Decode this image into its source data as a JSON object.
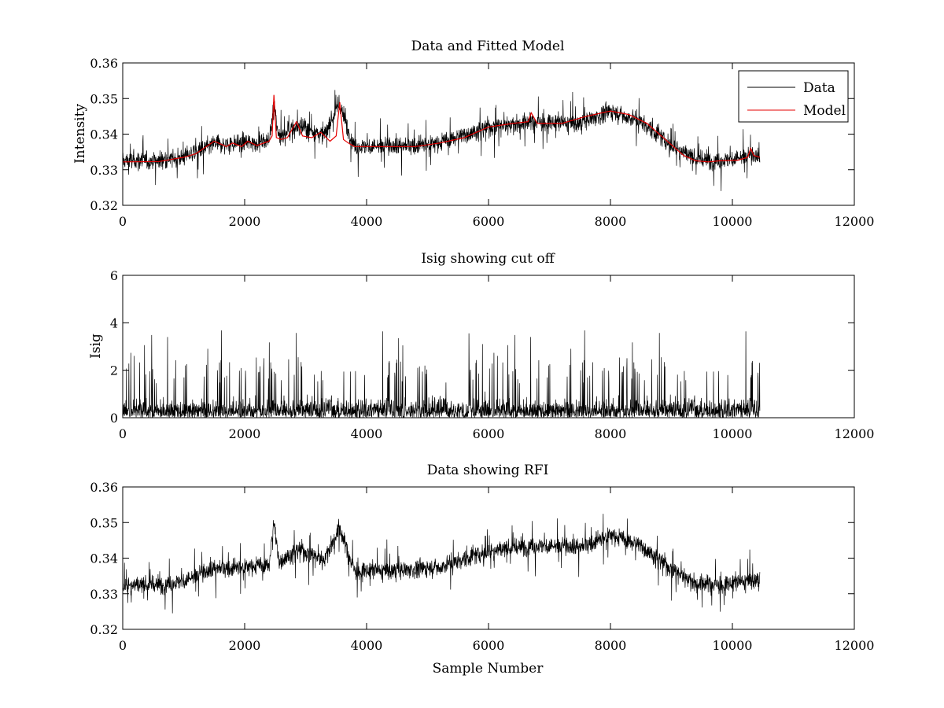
{
  "figure": {
    "background": "#ffffff",
    "axes_color": "#000000"
  },
  "chart_data": [
    {
      "type": "line",
      "title": "Data and Fitted Model",
      "xlabel": "",
      "ylabel": "Intensity",
      "xlim": [
        0,
        12000
      ],
      "ylim": [
        0.32,
        0.36
      ],
      "xticks": [
        "0",
        "2000",
        "4000",
        "6000",
        "8000",
        "10000",
        "12000"
      ],
      "yticks": [
        "0.32",
        "0.33",
        "0.34",
        "0.35",
        "0.36"
      ],
      "legend": {
        "placement": "top-right",
        "entries": [
          "Data",
          "Model"
        ]
      },
      "series": [
        {
          "name": "Data",
          "color": "#000000",
          "x_range": [
            0,
            10450
          ],
          "noise_amplitude": 0.0045,
          "baseline": {
            "x": [
              0,
              600,
              1000,
              1500,
              2000,
              2400,
              2480,
              2560,
              2900,
              3300,
              3550,
              3800,
              4500,
              5200,
              6000,
              6700,
              7500,
              8000,
              8500,
              9000,
              9400,
              9800,
              10200,
              10450
            ],
            "y": [
              0.3325,
              0.3325,
              0.3335,
              0.337,
              0.3375,
              0.338,
              0.35,
              0.339,
              0.3425,
              0.3395,
              0.3485,
              0.3365,
              0.3365,
              0.3375,
              0.342,
              0.3435,
              0.343,
              0.3465,
              0.3435,
              0.337,
              0.333,
              0.3325,
              0.3335,
              0.334
            ]
          }
        },
        {
          "name": "Model",
          "color": "#e60000",
          "x": [
            0,
            600,
            1000,
            1200,
            1500,
            1700,
            1800,
            1950,
            2050,
            2200,
            2400,
            2450,
            2480,
            2520,
            2600,
            2700,
            2850,
            2950,
            3100,
            3250,
            3400,
            3500,
            3560,
            3620,
            3700,
            3800,
            4200,
            4800,
            5200,
            5600,
            6000,
            6400,
            6650,
            6700,
            6800,
            7200,
            7600,
            8000,
            8300,
            8600,
            8800,
            9000,
            9200,
            9400,
            9600,
            9800,
            10100,
            10250,
            10300,
            10350,
            10450
          ],
          "y": [
            0.3322,
            0.3323,
            0.3335,
            0.3345,
            0.338,
            0.3365,
            0.3375,
            0.3365,
            0.338,
            0.3368,
            0.338,
            0.3395,
            0.351,
            0.339,
            0.3385,
            0.339,
            0.3435,
            0.3395,
            0.339,
            0.3405,
            0.338,
            0.3395,
            0.349,
            0.3385,
            0.3375,
            0.3365,
            0.3365,
            0.3365,
            0.3375,
            0.339,
            0.342,
            0.343,
            0.3435,
            0.346,
            0.343,
            0.343,
            0.345,
            0.3465,
            0.3455,
            0.343,
            0.34,
            0.337,
            0.334,
            0.3325,
            0.3322,
            0.3325,
            0.3327,
            0.3335,
            0.336,
            0.334,
            0.3335
          ]
        }
      ]
    },
    {
      "type": "line",
      "title": "Isig showing cut off",
      "xlabel": "",
      "ylabel": "Isig",
      "xlim": [
        0,
        12000
      ],
      "ylim": [
        0,
        6
      ],
      "xticks": [
        "0",
        "2000",
        "4000",
        "6000",
        "8000",
        "10000",
        "12000"
      ],
      "yticks": [
        "0",
        "2",
        "4",
        "6"
      ],
      "series": [
        {
          "name": "",
          "color": "#000000",
          "x_range": [
            0,
            10450
          ],
          "typical_max": 1.6,
          "peak_max": 3.7
        }
      ]
    },
    {
      "type": "line",
      "title": "Data showing RFI",
      "xlabel": "Sample Number",
      "ylabel": "",
      "xlim": [
        0,
        12000
      ],
      "ylim": [
        0.32,
        0.36
      ],
      "xticks": [
        "0",
        "2000",
        "4000",
        "6000",
        "8000",
        "10000",
        "12000"
      ],
      "yticks": [
        "0.32",
        "0.33",
        "0.34",
        "0.35",
        "0.36"
      ],
      "series": [
        {
          "name": "",
          "color": "#000000",
          "x_range": [
            0,
            10450
          ],
          "noise_amplitude": 0.0045,
          "baseline": {
            "x": [
              0,
              600,
              1000,
              1500,
              2000,
              2400,
              2480,
              2560,
              2900,
              3300,
              3550,
              3800,
              4500,
              5200,
              6000,
              6700,
              7500,
              8000,
              8500,
              9000,
              9400,
              9800,
              10200,
              10450
            ],
            "y": [
              0.3325,
              0.3325,
              0.3335,
              0.337,
              0.3375,
              0.338,
              0.35,
              0.339,
              0.3425,
              0.3395,
              0.3485,
              0.3365,
              0.3365,
              0.3375,
              0.342,
              0.3435,
              0.343,
              0.3465,
              0.3435,
              0.337,
              0.333,
              0.3325,
              0.3335,
              0.334
            ]
          }
        }
      ]
    }
  ]
}
